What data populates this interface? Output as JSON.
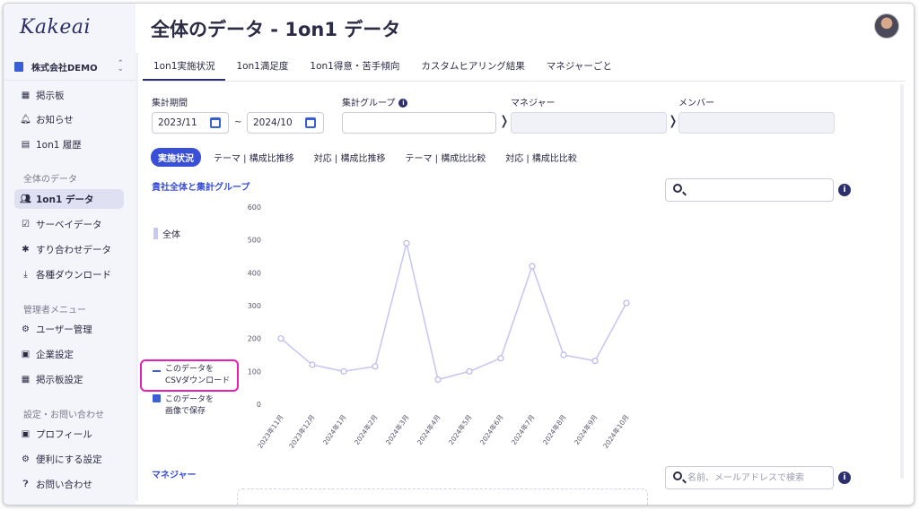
{
  "app": {
    "logo": "Kakeai"
  },
  "page": {
    "title": "全体のデータ - 1on1 データ"
  },
  "sidebar": {
    "company": "株式会社DEMO",
    "updown": "⌃⌄",
    "top_items": [
      {
        "label": "掲示板",
        "icon": "board-icon"
      },
      {
        "label": "お知らせ",
        "icon": "bell-icon"
      },
      {
        "label": "1on1 履歴",
        "icon": "history-icon"
      }
    ],
    "section_data": "全体のデータ",
    "data_items": [
      {
        "label": "1on1 データ",
        "icon": "people-icon",
        "active": true
      },
      {
        "label": "サーベイデータ",
        "icon": "survey-icon"
      },
      {
        "label": "すり合わせデータ",
        "icon": "puzzle-icon"
      },
      {
        "label": "各種ダウンロード",
        "icon": "download-icon"
      }
    ],
    "section_admin": "管理者メニュー",
    "admin_items": [
      {
        "label": "ユーザー管理",
        "icon": "user-admin-icon"
      },
      {
        "label": "企業設定",
        "icon": "company-icon"
      },
      {
        "label": "掲示板設定",
        "icon": "board-settings-icon"
      }
    ],
    "section_settings": "設定・お問い合わせ",
    "settings_items": [
      {
        "label": "プロフィール",
        "icon": "profile-icon"
      },
      {
        "label": "便利にする設定",
        "icon": "gear-icon"
      },
      {
        "label": "お問い合わせ",
        "icon": "help-icon"
      }
    ]
  },
  "tabs": [
    "1on1実施状況",
    "1on1満足度",
    "1on1得意・苦手傾向",
    "カスタムヒアリング結果",
    "マネジャーごと"
  ],
  "filters": {
    "period_label": "集計期間",
    "start": "2023/11",
    "tilde": "~",
    "end": "2024/10",
    "group_label": "集計グループ",
    "group_info": "i",
    "manager_label": "マネジャー",
    "member_label": "メンバー",
    "chevron": "❭"
  },
  "subtabs": [
    "実施状況",
    "テーマ | 構成比推移",
    "対応 | 構成比推移",
    "テーマ | 構成比比較",
    "対応 | 構成比比較"
  ],
  "section1": {
    "title": "貴社全体と集計グループ",
    "search_placeholder": "",
    "info": "i",
    "download_csv_line1": "このデータを",
    "download_csv_line2": "CSVダウンロード",
    "save_image_line1": "このデータを",
    "save_image_line2": "画像で保存"
  },
  "section2": {
    "title": "マネジャー",
    "search_placeholder": "名前、メールアドレスで検索",
    "info": "i"
  },
  "colors": {
    "accent": "#3a4fd8",
    "navy": "#2c2f6b",
    "series": "#c9c7f3",
    "highlight": "#e81fb7"
  },
  "chart_data": {
    "type": "line",
    "categories": [
      "2023年11月",
      "2023年12月",
      "2024年1月",
      "2024年2月",
      "2024年3月",
      "2024年4月",
      "2024年5月",
      "2024年6月",
      "2024年7月",
      "2024年8月",
      "2024年9月",
      "2024年10月"
    ],
    "series": [
      {
        "name": "全体",
        "values": [
          200,
          120,
          100,
          115,
          490,
          75,
          100,
          140,
          420,
          150,
          132,
          308
        ]
      }
    ],
    "yticks": [
      0,
      100,
      200,
      300,
      400,
      500,
      600
    ],
    "ylim": [
      0,
      600
    ],
    "legend": "left",
    "grid": false
  }
}
